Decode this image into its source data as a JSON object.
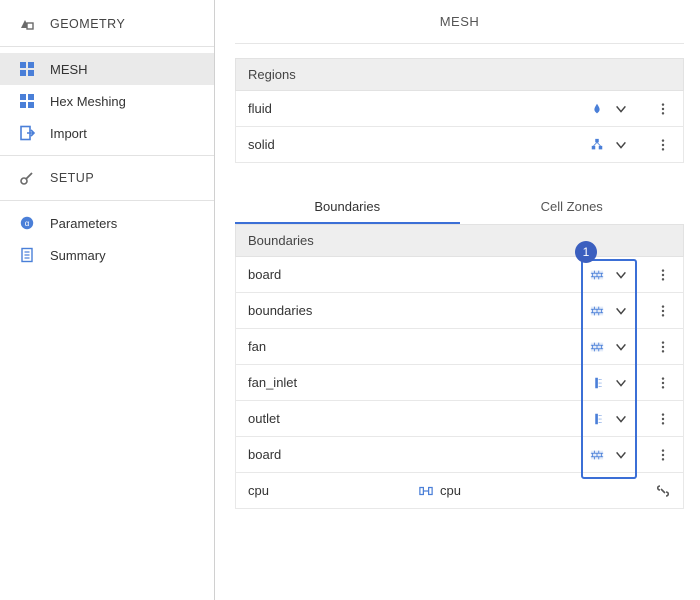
{
  "colors": {
    "accent": "#3b6fd6",
    "badge_bg": "#3b5fbf",
    "icon_blue": "#4a7fd8",
    "icon_gray": "#6a6a6a",
    "divider": "#e2e2e2",
    "row_border": "#e8e8e8",
    "panel_bg": "#eeeeee",
    "active_bg": "#eaeaea"
  },
  "sidebar": {
    "sections": [
      {
        "type": "header",
        "label": "GEOMETRY",
        "icon": "geometry"
      },
      {
        "type": "divider"
      },
      {
        "type": "item",
        "label": "MESH",
        "icon": "mesh",
        "active": true
      },
      {
        "type": "item",
        "label": "Hex Meshing",
        "icon": "hex"
      },
      {
        "type": "item",
        "label": "Import",
        "icon": "import"
      },
      {
        "type": "divider"
      },
      {
        "type": "header",
        "label": "SETUP",
        "icon": "setup"
      },
      {
        "type": "divider"
      },
      {
        "type": "item",
        "label": "Parameters",
        "icon": "parameters"
      },
      {
        "type": "item",
        "label": "Summary",
        "icon": "summary"
      }
    ]
  },
  "main": {
    "title": "MESH",
    "regions": {
      "header": "Regions",
      "rows": [
        {
          "name": "fluid",
          "type_icon": "fluid"
        },
        {
          "name": "solid",
          "type_icon": "solid"
        }
      ]
    },
    "tabs": [
      {
        "label": "Boundaries",
        "active": true
      },
      {
        "label": "Cell Zones",
        "active": false
      }
    ],
    "boundaries": {
      "header": "Boundaries",
      "rows": [
        {
          "name": "board",
          "type_icon": "wall",
          "highlighted": true,
          "kebab": true
        },
        {
          "name": "boundaries",
          "type_icon": "wall",
          "highlighted": true,
          "kebab": true
        },
        {
          "name": "fan",
          "type_icon": "wall",
          "highlighted": true,
          "kebab": true
        },
        {
          "name": "fan_inlet",
          "type_icon": "inlet",
          "highlighted": true,
          "kebab": true
        },
        {
          "name": "outlet",
          "type_icon": "inlet",
          "highlighted": true,
          "kebab": true
        },
        {
          "name": "board",
          "type_icon": "wall",
          "highlighted": true,
          "kebab": true
        },
        {
          "name": "cpu",
          "type_icon": "link",
          "highlighted": false,
          "link_label": "cpu",
          "link_icon": true,
          "unlink": true
        }
      ],
      "highlight_badge": "1"
    }
  }
}
